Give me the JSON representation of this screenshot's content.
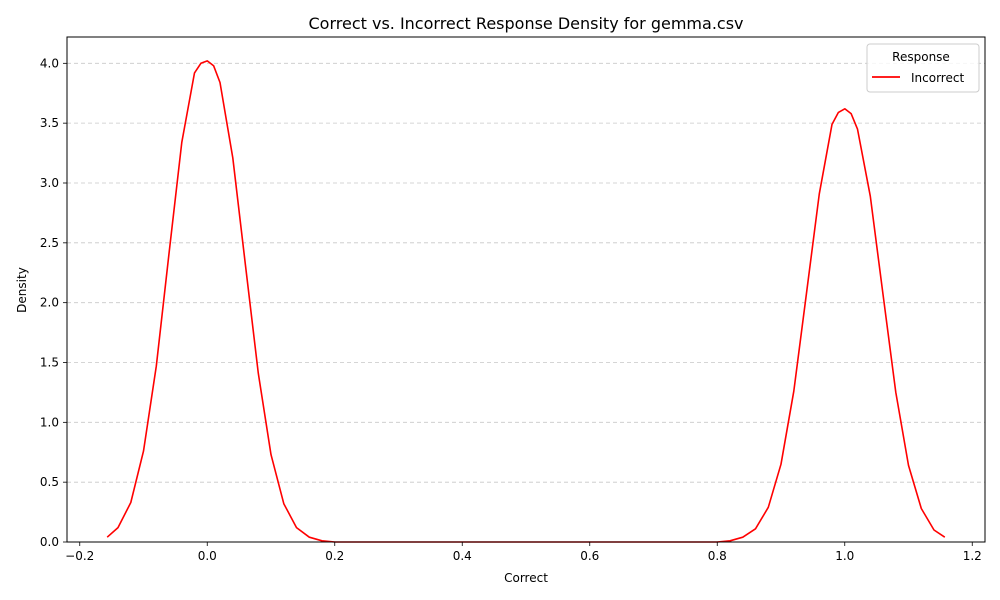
{
  "chart_data": {
    "type": "line",
    "title": "Correct vs. Incorrect Response Density for gemma.csv",
    "xlabel": "Correct",
    "ylabel": "Density",
    "xlim": [
      -0.22,
      1.22
    ],
    "ylim": [
      0,
      4.22
    ],
    "xticks": [
      -0.2,
      0.0,
      0.2,
      0.4,
      0.6,
      0.8,
      1.0,
      1.2
    ],
    "xtick_labels": [
      "−0.2",
      "0.0",
      "0.2",
      "0.4",
      "0.6",
      "0.8",
      "1.0",
      "1.2"
    ],
    "yticks": [
      0.0,
      0.5,
      1.0,
      1.5,
      2.0,
      2.5,
      3.0,
      3.5,
      4.0
    ],
    "ytick_labels": [
      "0.0",
      "0.5",
      "1.0",
      "1.5",
      "2.0",
      "2.5",
      "3.0",
      "3.5",
      "4.0"
    ],
    "grid": "y-dashed",
    "legend": {
      "title": "Response",
      "placement": "top-right",
      "entries": [
        {
          "name": "Incorrect",
          "color": "#ff0000"
        }
      ]
    },
    "series": [
      {
        "name": "Incorrect",
        "color": "#ff0000",
        "x": [
          -0.157,
          -0.14,
          -0.12,
          -0.1,
          -0.08,
          -0.06,
          -0.04,
          -0.02,
          -0.01,
          0.0,
          0.01,
          0.02,
          0.04,
          0.06,
          0.08,
          0.1,
          0.12,
          0.14,
          0.16,
          0.18,
          0.2,
          0.3,
          0.4,
          0.5,
          0.6,
          0.7,
          0.8,
          0.82,
          0.84,
          0.86,
          0.88,
          0.9,
          0.92,
          0.94,
          0.96,
          0.98,
          0.99,
          1.0,
          1.01,
          1.02,
          1.04,
          1.06,
          1.08,
          1.1,
          1.12,
          1.14,
          1.157
        ],
        "y": [
          0.04,
          0.12,
          0.33,
          0.76,
          1.47,
          2.41,
          3.34,
          3.92,
          4.0,
          4.02,
          3.98,
          3.84,
          3.21,
          2.31,
          1.41,
          0.73,
          0.32,
          0.12,
          0.04,
          0.01,
          0.0,
          0.0,
          0.0,
          0.0,
          0.0,
          0.0,
          0.0,
          0.01,
          0.04,
          0.11,
          0.29,
          0.65,
          1.26,
          2.08,
          2.91,
          3.49,
          3.59,
          3.62,
          3.58,
          3.45,
          2.89,
          2.07,
          1.25,
          0.64,
          0.28,
          0.1,
          0.04
        ]
      }
    ]
  }
}
